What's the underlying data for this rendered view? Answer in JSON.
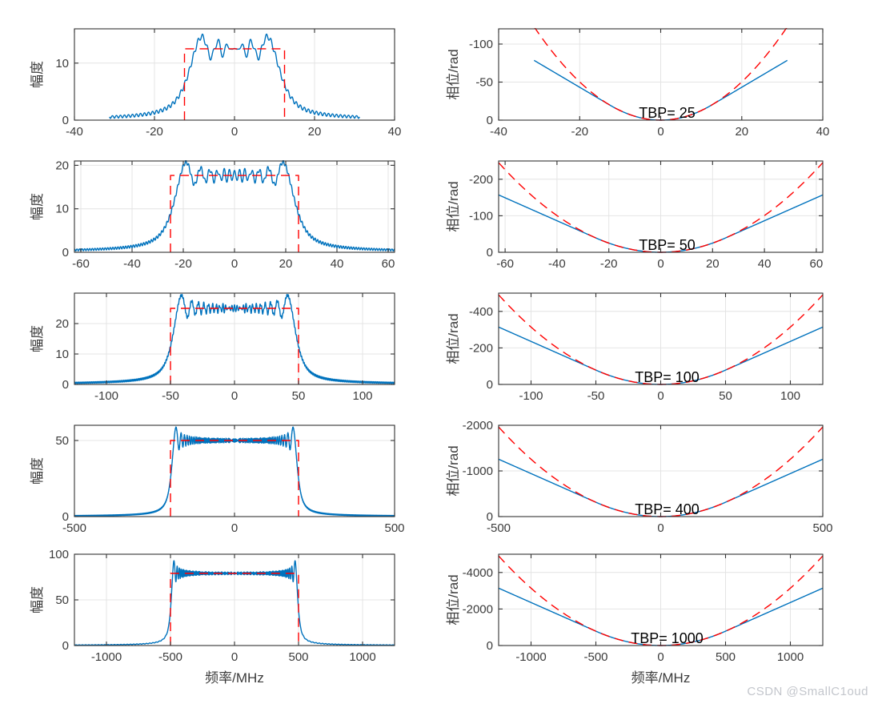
{
  "page": {
    "watermark": "CSDN @SmallC1oud",
    "background": "#ffffff"
  },
  "style": {
    "line_blue": "#0072BD",
    "line_red": "#FF0000",
    "grid": "#E4E4E4",
    "axis": "#333333",
    "tick_label": "#3B3B3B",
    "annotation": "#000000",
    "watermark": "#C3C6CC"
  },
  "labels": {
    "magnitude_ylabel": "幅度",
    "phase_ylabel": "相位/rad",
    "frequency_xlabel": "频率/MHz"
  },
  "chart_data": [
    {
      "id": "magnitude-tbp-25",
      "type": "line",
      "ylabel": "幅度",
      "xlabel": "",
      "x_unit": "MHz",
      "xlim": [
        -40,
        40
      ],
      "xticks": [
        -40,
        -20,
        0,
        20,
        40
      ],
      "ybottom": 0,
      "ytop": 16,
      "yticks": [
        0,
        10
      ],
      "grid": true,
      "series": [
        {
          "name": "actual-lfm-spectrum",
          "generator": "lfm_fresnel_magnitude",
          "color_key": "line_blue",
          "line": "solid",
          "tbp": 25,
          "bandwidth_mhz": 25,
          "duration_us": 1,
          "amp_scale": 2.5,
          "f_extent": 31.25,
          "flat_level": 12.5,
          "peak_approx": 15.3
        },
        {
          "name": "ideal-rect-spectrum",
          "generator": "rect",
          "color_key": "line_red",
          "line": "dashed",
          "band": [
            -12.5,
            12.5
          ],
          "height": 12.5
        }
      ]
    },
    {
      "id": "phase-tbp-25",
      "type": "line",
      "ylabel": "相位/rad",
      "xlabel": "",
      "annotation": {
        "text": "TBP= 25"
      },
      "x_unit": "MHz",
      "xlim": [
        -40,
        40
      ],
      "xticks": [
        -40,
        -20,
        0,
        20,
        40
      ],
      "ybottom": 0,
      "ytop": -120,
      "yticks": [
        0,
        -50,
        -100
      ],
      "grid": true,
      "series": [
        {
          "name": "actual-unwrapped-phase",
          "generator": "lfm_phase_actual",
          "color_key": "line_blue",
          "line": "solid",
          "bandwidth_mhz": 25,
          "f_extent": 31.25,
          "phase_at_extent_rad": -78.5
        },
        {
          "name": "ideal-quadratic-phase",
          "generator": "lfm_phase_ideal",
          "color_key": "line_red",
          "line": "dashed",
          "bandwidth_mhz": 25,
          "f_extent": 31.25,
          "phase_at_extent_rad": -122.7
        }
      ]
    },
    {
      "id": "magnitude-tbp-50",
      "type": "line",
      "ylabel": "幅度",
      "xlabel": "",
      "x_unit": "MHz",
      "xlim": [
        -62.5,
        62.5
      ],
      "xticks": [
        -60,
        -40,
        -20,
        0,
        20,
        40,
        60
      ],
      "ybottom": 0,
      "ytop": 21,
      "yticks": [
        0,
        10,
        20
      ],
      "grid": true,
      "series": [
        {
          "name": "actual-lfm-spectrum",
          "generator": "lfm_fresnel_magnitude",
          "color_key": "line_blue",
          "line": "solid",
          "tbp": 50,
          "bandwidth_mhz": 50,
          "duration_us": 1,
          "amp_scale": 2.5,
          "f_extent": 62.5,
          "flat_level": 17.68,
          "peak_approx": 20.7
        },
        {
          "name": "ideal-rect-spectrum",
          "generator": "rect",
          "color_key": "line_red",
          "line": "dashed",
          "band": [
            -25,
            25
          ],
          "height": 17.68
        }
      ]
    },
    {
      "id": "phase-tbp-50",
      "type": "line",
      "ylabel": "相位/rad",
      "xlabel": "",
      "annotation": {
        "text": "TBP= 50"
      },
      "x_unit": "MHz",
      "xlim": [
        -62.5,
        62.5
      ],
      "xticks": [
        -60,
        -40,
        -20,
        0,
        20,
        40,
        60
      ],
      "ybottom": 0,
      "ytop": -250,
      "yticks": [
        0,
        -100,
        -200
      ],
      "grid": true,
      "series": [
        {
          "name": "actual-unwrapped-phase",
          "generator": "lfm_phase_actual",
          "color_key": "line_blue",
          "line": "solid",
          "bandwidth_mhz": 50,
          "f_extent": 62.5,
          "phase_at_extent_rad": -157.1
        },
        {
          "name": "ideal-quadratic-phase",
          "generator": "lfm_phase_ideal",
          "color_key": "line_red",
          "line": "dashed",
          "bandwidth_mhz": 50,
          "f_extent": 62.5,
          "phase_at_extent_rad": -245.4
        }
      ]
    },
    {
      "id": "magnitude-tbp-100",
      "type": "line",
      "ylabel": "幅度",
      "xlabel": "",
      "x_unit": "MHz",
      "xlim": [
        -125,
        125
      ],
      "xticks": [
        -100,
        -50,
        0,
        50,
        100
      ],
      "ybottom": 0,
      "ytop": 30,
      "yticks": [
        0,
        10,
        20
      ],
      "grid": true,
      "series": [
        {
          "name": "actual-lfm-spectrum",
          "generator": "lfm_fresnel_magnitude",
          "color_key": "line_blue",
          "line": "solid",
          "tbp": 100,
          "bandwidth_mhz": 100,
          "duration_us": 1,
          "amp_scale": 2.5,
          "f_extent": 125,
          "flat_level": 25,
          "peak_approx": 29
        },
        {
          "name": "ideal-rect-spectrum",
          "generator": "rect",
          "color_key": "line_red",
          "line": "dashed",
          "band": [
            -50,
            50
          ],
          "height": 25
        }
      ]
    },
    {
      "id": "phase-tbp-100",
      "type": "line",
      "ylabel": "相位/rad",
      "xlabel": "",
      "annotation": {
        "text": "TBP= 100"
      },
      "x_unit": "MHz",
      "xlim": [
        -125,
        125
      ],
      "xticks": [
        -100,
        -50,
        0,
        50,
        100
      ],
      "ybottom": 0,
      "ytop": -500,
      "yticks": [
        0,
        -200,
        -400
      ],
      "grid": true,
      "series": [
        {
          "name": "actual-unwrapped-phase",
          "generator": "lfm_phase_actual",
          "color_key": "line_blue",
          "line": "solid",
          "bandwidth_mhz": 100,
          "f_extent": 125,
          "phase_at_extent_rad": -314.2
        },
        {
          "name": "ideal-quadratic-phase",
          "generator": "lfm_phase_ideal",
          "color_key": "line_red",
          "line": "dashed",
          "bandwidth_mhz": 100,
          "f_extent": 125,
          "phase_at_extent_rad": -490.9
        }
      ]
    },
    {
      "id": "magnitude-tbp-400",
      "type": "line",
      "ylabel": "幅度",
      "xlabel": "",
      "x_unit": "MHz",
      "xlim": [
        -500,
        500
      ],
      "xticks": [
        -500,
        0,
        500
      ],
      "ybottom": 0,
      "ytop": 60,
      "yticks": [
        0,
        50
      ],
      "grid": true,
      "series": [
        {
          "name": "actual-lfm-spectrum",
          "generator": "lfm_fresnel_magnitude",
          "color_key": "line_blue",
          "line": "solid",
          "tbp": 400,
          "bandwidth_mhz": 400,
          "duration_us": 1,
          "amp_scale": 2.5,
          "f_extent": 500,
          "flat_level": 50,
          "peak_approx": 58
        },
        {
          "name": "ideal-rect-spectrum",
          "generator": "rect",
          "color_key": "line_red",
          "line": "dashed",
          "band": [
            -200,
            200
          ],
          "height": 50
        }
      ]
    },
    {
      "id": "phase-tbp-400",
      "type": "line",
      "ylabel": "相位/rad",
      "xlabel": "",
      "annotation": {
        "text": "TBP= 400"
      },
      "x_unit": "MHz",
      "xlim": [
        -500,
        500
      ],
      "xticks": [
        -500,
        0,
        500
      ],
      "ybottom": 0,
      "ytop": -2000,
      "yticks": [
        0,
        -1000,
        -2000
      ],
      "grid": true,
      "series": [
        {
          "name": "actual-unwrapped-phase",
          "generator": "lfm_phase_actual",
          "color_key": "line_blue",
          "line": "solid",
          "bandwidth_mhz": 400,
          "f_extent": 500,
          "phase_at_extent_rad": -1256.6
        },
        {
          "name": "ideal-quadratic-phase",
          "generator": "lfm_phase_ideal",
          "color_key": "line_red",
          "line": "dashed",
          "bandwidth_mhz": 400,
          "f_extent": 500,
          "phase_at_extent_rad": -1963.5
        }
      ]
    },
    {
      "id": "magnitude-tbp-1000",
      "type": "line",
      "ylabel": "幅度",
      "xlabel": "频率/MHz",
      "x_unit": "MHz",
      "xlim": [
        -1250,
        1250
      ],
      "xticks": [
        -1000,
        -500,
        0,
        500,
        1000
      ],
      "ybottom": 0,
      "ytop": 100,
      "yticks": [
        0,
        50,
        100
      ],
      "grid": true,
      "series": [
        {
          "name": "actual-lfm-spectrum",
          "generator": "lfm_fresnel_magnitude",
          "color_key": "line_blue",
          "line": "solid",
          "tbp": 1000,
          "bandwidth_mhz": 1000,
          "duration_us": 1,
          "amp_scale": 2.5,
          "f_extent": 1250,
          "flat_level": 79.06,
          "peak_approx": 93
        },
        {
          "name": "ideal-rect-spectrum",
          "generator": "rect",
          "color_key": "line_red",
          "line": "dashed",
          "band": [
            -500,
            500
          ],
          "height": 79.06
        }
      ]
    },
    {
      "id": "phase-tbp-1000",
      "type": "line",
      "ylabel": "相位/rad",
      "xlabel": "频率/MHz",
      "annotation": {
        "text": "TBP= 1000"
      },
      "x_unit": "MHz",
      "xlim": [
        -1250,
        1250
      ],
      "xticks": [
        -1000,
        -500,
        0,
        500,
        1000
      ],
      "ybottom": 0,
      "ytop": -5000,
      "yticks": [
        0,
        -2000,
        -4000
      ],
      "grid": true,
      "series": [
        {
          "name": "actual-unwrapped-phase",
          "generator": "lfm_phase_actual",
          "color_key": "line_blue",
          "line": "solid",
          "bandwidth_mhz": 1000,
          "f_extent": 1250,
          "phase_at_extent_rad": -3141.6
        },
        {
          "name": "ideal-quadratic-phase",
          "generator": "lfm_phase_ideal",
          "color_key": "line_red",
          "line": "dashed",
          "bandwidth_mhz": 1000,
          "f_extent": 1250,
          "phase_at_extent_rad": -4908.7
        }
      ]
    }
  ]
}
